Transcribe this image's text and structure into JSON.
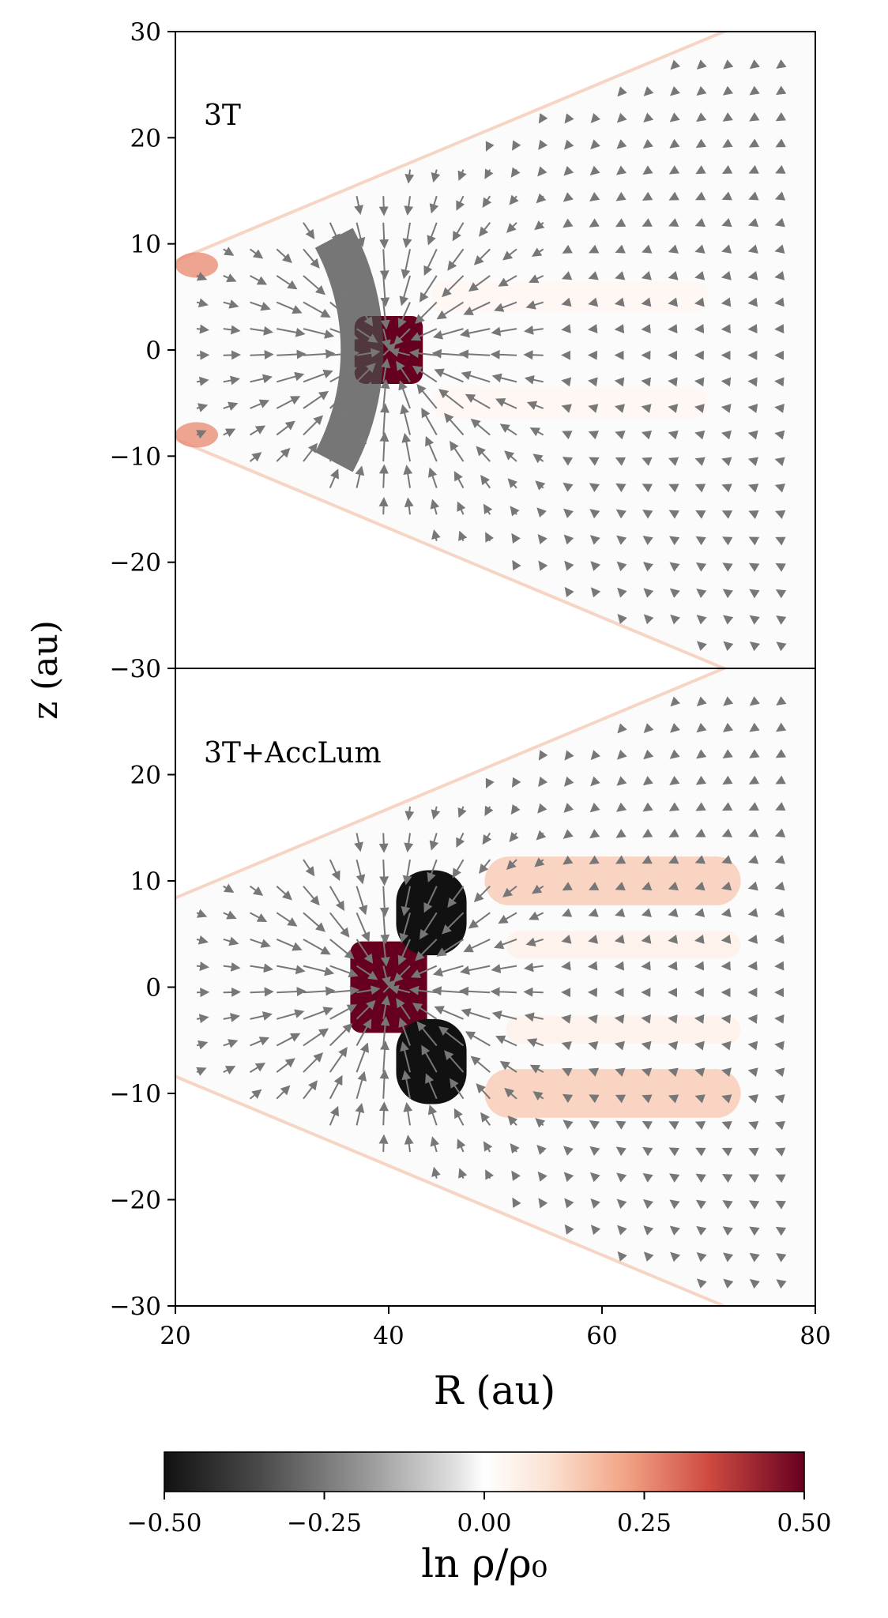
{
  "chart_data": [
    {
      "type": "heatmap",
      "panel_label": "3T",
      "xlim": [
        20,
        80
      ],
      "ylim": [
        -30,
        30
      ],
      "x_ticks": [
        "20",
        "40",
        "60",
        "80"
      ],
      "y_ticks": [
        "30",
        "20",
        "10",
        "0",
        "−10",
        "−20",
        "−30"
      ],
      "ylabel": "z (au)",
      "features": [
        {
          "kind": "blob",
          "center": [
            40,
            0
          ],
          "half_size": [
            3.2,
            3.2
          ],
          "value": 0.5
        },
        {
          "kind": "ring",
          "center": [
            20,
            0
          ],
          "radii": [
            20.5,
            24.5
          ],
          "value": -0.35,
          "angular_extent_deg": 56
        },
        {
          "kind": "streak",
          "center": [
            57,
            5
          ],
          "half_size": [
            13,
            1.5
          ],
          "value": 0.03
        },
        {
          "kind": "streak",
          "center": [
            57,
            -5
          ],
          "half_size": [
            13,
            1.5
          ],
          "value": 0.03
        },
        {
          "kind": "edge",
          "near": [
            22,
            8
          ],
          "value": 0.25
        },
        {
          "kind": "edge",
          "near": [
            22,
            -8
          ],
          "value": 0.25
        }
      ]
    },
    {
      "type": "heatmap",
      "panel_label": "3T+AccLum",
      "xlim": [
        20,
        80
      ],
      "ylim": [
        -30,
        30
      ],
      "x_ticks": [
        "20",
        "40",
        "60",
        "80"
      ],
      "y_ticks": [
        "20",
        "10",
        "0",
        "−10",
        "−20",
        "−30"
      ],
      "xlabel": "R (au)",
      "features": [
        {
          "kind": "blob",
          "center": [
            40,
            0
          ],
          "half_size": [
            3.6,
            4.3
          ],
          "value": 0.5
        },
        {
          "kind": "lobe",
          "center": [
            44,
            7
          ],
          "half_size": [
            3.3,
            4
          ],
          "value": -0.5
        },
        {
          "kind": "lobe",
          "center": [
            44,
            -7
          ],
          "half_size": [
            3.3,
            4
          ],
          "value": -0.5
        },
        {
          "kind": "streak",
          "center": [
            61,
            10
          ],
          "half_size": [
            12,
            2.3
          ],
          "value": 0.14
        },
        {
          "kind": "streak",
          "center": [
            61,
            -10
          ],
          "half_size": [
            12,
            2.3
          ],
          "value": 0.14
        },
        {
          "kind": "streak",
          "center": [
            62,
            4
          ],
          "half_size": [
            11,
            1.3
          ],
          "value": 0.05
        },
        {
          "kind": "streak",
          "center": [
            62,
            -4
          ],
          "half_size": [
            11,
            1.3
          ],
          "value": 0.05
        }
      ]
    }
  ],
  "colorbar": {
    "label": "ln ρ/ρ₀",
    "range": [
      -0.5,
      0.5
    ],
    "ticks": [
      "−0.50",
      "−0.25",
      "0.00",
      "0.25",
      "0.50"
    ],
    "colors": [
      "#111111",
      "#6b6b6b",
      "#d7d7d7",
      "#ffffff",
      "#f7c5a6",
      "#db6a52",
      "#b0132b",
      "#67001f"
    ]
  },
  "arrow_color": "#777777"
}
